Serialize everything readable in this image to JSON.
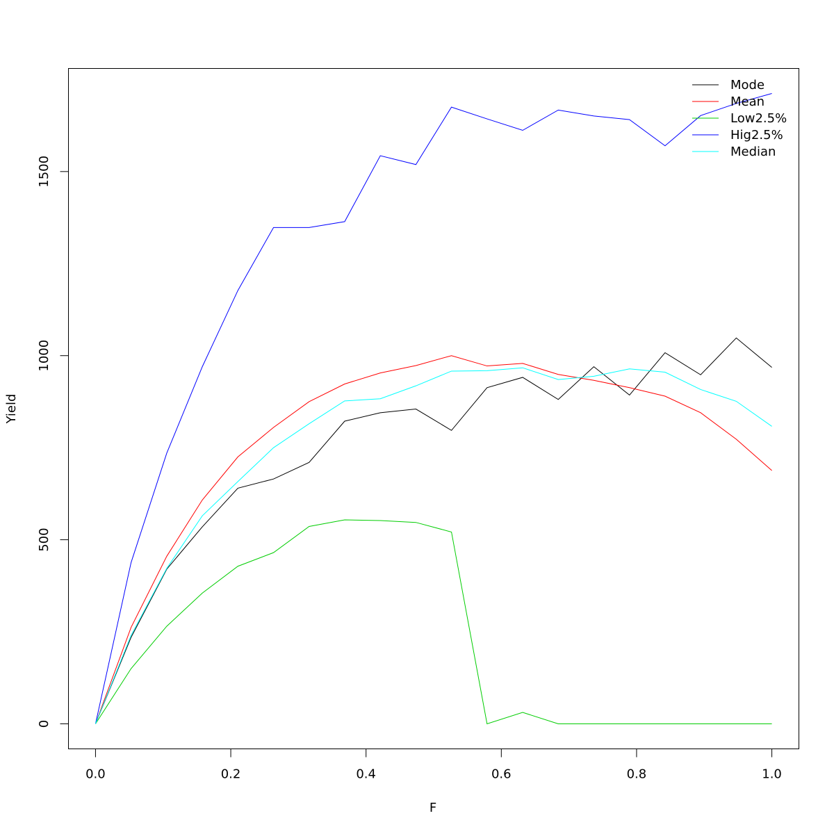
{
  "chart_data": {
    "type": "line",
    "xlabel": "F",
    "ylabel": "Yield",
    "xlim": [
      -0.04,
      1.04
    ],
    "ylim": [
      -68,
      1780
    ],
    "x_ticks": [
      0.0,
      0.2,
      0.4,
      0.6,
      0.8,
      1.0
    ],
    "x_tick_labels": [
      "0.0",
      "0.2",
      "0.4",
      "0.6",
      "0.8",
      "1.0"
    ],
    "y_ticks": [
      0,
      500,
      1000,
      1500
    ],
    "y_tick_labels": [
      "0",
      "500",
      "1000",
      "1500"
    ],
    "grid": false,
    "legend_position": "top-right",
    "x": [
      0.0,
      0.0526,
      0.1053,
      0.1579,
      0.2105,
      0.2632,
      0.3158,
      0.3684,
      0.4211,
      0.4737,
      0.5263,
      0.5789,
      0.6316,
      0.6842,
      0.7368,
      0.7895,
      0.8421,
      0.8947,
      0.9474,
      1.0
    ],
    "series": [
      {
        "name": "Mode",
        "color": "#000000",
        "values": [
          0,
          235,
          420,
          535,
          640,
          665,
          710,
          822,
          845,
          855,
          797,
          913,
          941,
          881,
          970,
          893,
          1008,
          948,
          1048,
          968
        ]
      },
      {
        "name": "Mean",
        "color": "#ff0000",
        "values": [
          0,
          262,
          455,
          608,
          725,
          805,
          875,
          923,
          953,
          973,
          1000,
          972,
          979,
          949,
          933,
          913,
          890,
          845,
          773,
          688
        ]
      },
      {
        "name": "Low2.5%",
        "color": "#00cd00",
        "values": [
          0,
          150,
          265,
          355,
          428,
          465,
          536,
          554,
          552,
          547,
          521,
          0,
          31,
          0,
          0,
          0,
          0,
          0,
          0,
          0
        ]
      },
      {
        "name": "Hig2.5%",
        "color": "#0000ff",
        "values": [
          0,
          438,
          735,
          970,
          1177,
          1348,
          1348,
          1364,
          1543,
          1519,
          1675,
          1643,
          1612,
          1667,
          1651,
          1641,
          1570,
          1652,
          1685,
          1712
        ]
      },
      {
        "name": "Median",
        "color": "#00ffff",
        "values": [
          0,
          240,
          422,
          565,
          658,
          750,
          815,
          877,
          883,
          918,
          958,
          959,
          967,
          935,
          944,
          964,
          955,
          908,
          876,
          808
        ]
      }
    ]
  }
}
